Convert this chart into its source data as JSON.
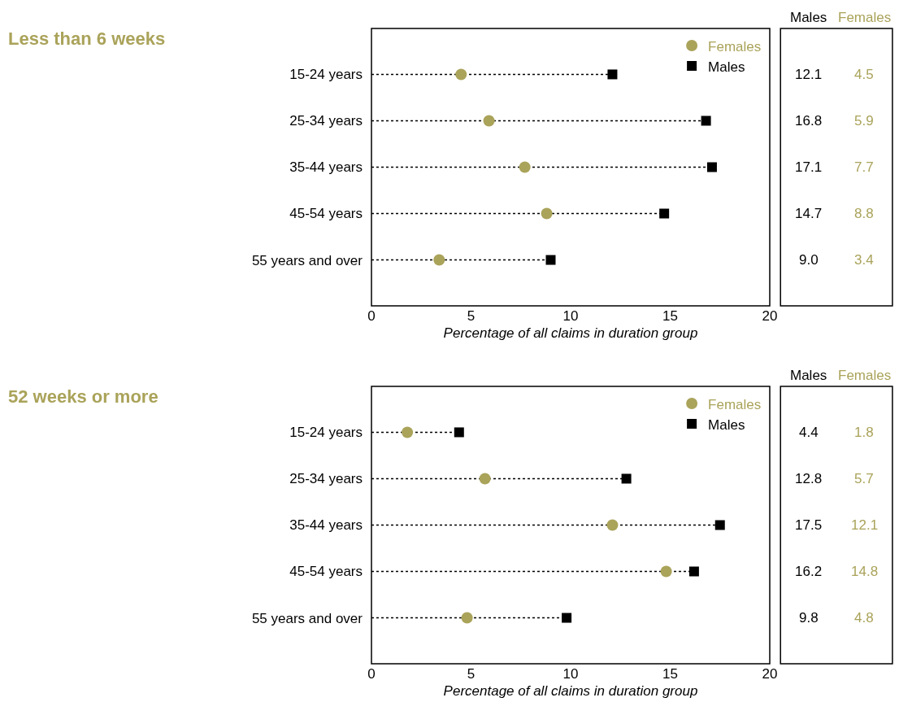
{
  "chart_data": [
    {
      "type": "scatter",
      "title": "Less than 6 weeks",
      "xlabel": "Percentage of all claims in duration group",
      "orientation": "horizontal",
      "categories": [
        "15-24 years",
        "25-34 years",
        "35-44 years",
        "45-54 years",
        "55 years and over"
      ],
      "xlim": [
        0,
        20
      ],
      "xticks": [
        0,
        5,
        10,
        15,
        20
      ],
      "grid": false,
      "legend": "top right",
      "series": [
        {
          "name": "Females",
          "marker": "circle",
          "color": "#aaa35a",
          "values": [
            4.5,
            5.9,
            7.7,
            8.8,
            3.4
          ],
          "value_labels": [
            "4.5",
            "5.9",
            "7.7",
            "8.8",
            "3.4"
          ]
        },
        {
          "name": "Males",
          "type": "lollipop",
          "marker": "square",
          "line_style": "dotted",
          "color": "#000000",
          "values": [
            12.1,
            16.8,
            17.1,
            14.7,
            9.0
          ],
          "value_labels": [
            "12.1",
            "16.8",
            "17.1",
            "14.7",
            "9.0"
          ]
        }
      ]
    },
    {
      "type": "scatter",
      "title": "52 weeks or more",
      "xlabel": "Percentage of all claims in duration group",
      "orientation": "horizontal",
      "categories": [
        "15-24 years",
        "25-34 years",
        "35-44 years",
        "45-54 years",
        "55 years and over"
      ],
      "xlim": [
        0,
        20
      ],
      "xticks": [
        0,
        5,
        10,
        15,
        20
      ],
      "grid": false,
      "legend": "top right",
      "series": [
        {
          "name": "Females",
          "marker": "circle",
          "color": "#aaa35a",
          "values": [
            1.8,
            5.7,
            12.1,
            14.8,
            4.8
          ],
          "value_labels": [
            "1.8",
            "5.7",
            "12.1",
            "14.8",
            "4.8"
          ]
        },
        {
          "name": "Males",
          "type": "lollipop",
          "marker": "square",
          "line_style": "dotted",
          "color": "#000000",
          "values": [
            4.4,
            12.8,
            17.5,
            16.2,
            9.8
          ],
          "value_labels": [
            "4.4",
            "12.8",
            "17.5",
            "16.2",
            "9.8"
          ]
        }
      ]
    }
  ]
}
